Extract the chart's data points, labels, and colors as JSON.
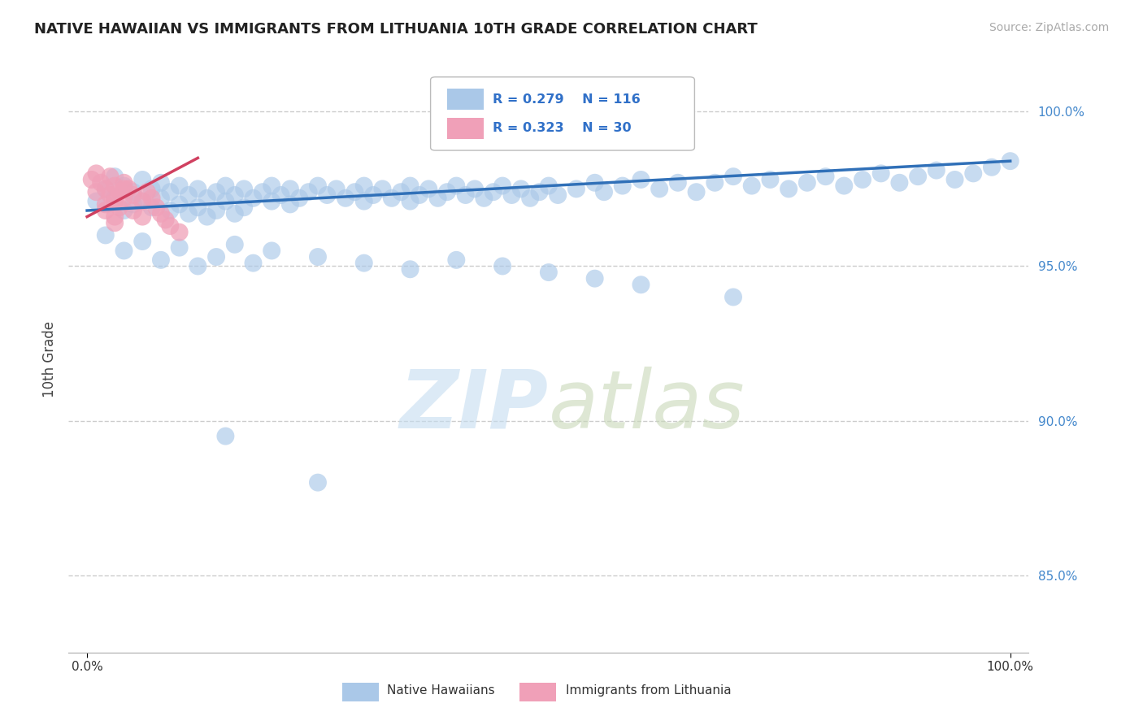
{
  "title": "NATIVE HAWAIIAN VS IMMIGRANTS FROM LITHUANIA 10TH GRADE CORRELATION CHART",
  "source": "Source: ZipAtlas.com",
  "ylabel": "10th Grade",
  "ytick_values": [
    0.85,
    0.9,
    0.95,
    1.0
  ],
  "xlim": [
    -0.02,
    1.02
  ],
  "ylim": [
    0.825,
    1.015
  ],
  "legend_r1": "R = 0.279",
  "legend_n1": "N = 116",
  "legend_r2": "R = 0.323",
  "legend_n2": "N = 30",
  "blue_color": "#aac8e8",
  "pink_color": "#f0a0b8",
  "blue_line_color": "#3070b8",
  "pink_line_color": "#d04060",
  "legend_text_color": "#3070c8",
  "background_color": "#ffffff",
  "blue_scatter_x": [
    0.01,
    0.02,
    0.03,
    0.03,
    0.04,
    0.04,
    0.05,
    0.05,
    0.06,
    0.06,
    0.07,
    0.07,
    0.08,
    0.08,
    0.09,
    0.09,
    0.1,
    0.1,
    0.11,
    0.11,
    0.12,
    0.12,
    0.13,
    0.13,
    0.14,
    0.14,
    0.15,
    0.15,
    0.16,
    0.16,
    0.17,
    0.17,
    0.18,
    0.19,
    0.2,
    0.2,
    0.21,
    0.22,
    0.22,
    0.23,
    0.24,
    0.25,
    0.26,
    0.27,
    0.28,
    0.29,
    0.3,
    0.3,
    0.31,
    0.32,
    0.33,
    0.34,
    0.35,
    0.35,
    0.36,
    0.37,
    0.38,
    0.39,
    0.4,
    0.41,
    0.42,
    0.43,
    0.44,
    0.45,
    0.46,
    0.47,
    0.48,
    0.49,
    0.5,
    0.51,
    0.53,
    0.55,
    0.56,
    0.58,
    0.6,
    0.62,
    0.64,
    0.66,
    0.68,
    0.7,
    0.72,
    0.74,
    0.76,
    0.78,
    0.8,
    0.82,
    0.84,
    0.86,
    0.88,
    0.9,
    0.92,
    0.94,
    0.96,
    0.98,
    1.0,
    0.02,
    0.04,
    0.06,
    0.08,
    0.1,
    0.12,
    0.14,
    0.16,
    0.18,
    0.2,
    0.25,
    0.3,
    0.35,
    0.4,
    0.45,
    0.5,
    0.55,
    0.6,
    0.7,
    0.15,
    0.25
  ],
  "blue_scatter_y": [
    0.971,
    0.975,
    0.979,
    0.972,
    0.968,
    0.976,
    0.974,
    0.97,
    0.978,
    0.971,
    0.975,
    0.969,
    0.977,
    0.972,
    0.974,
    0.968,
    0.976,
    0.97,
    0.973,
    0.967,
    0.975,
    0.969,
    0.972,
    0.966,
    0.974,
    0.968,
    0.976,
    0.971,
    0.973,
    0.967,
    0.975,
    0.969,
    0.972,
    0.974,
    0.976,
    0.971,
    0.973,
    0.975,
    0.97,
    0.972,
    0.974,
    0.976,
    0.973,
    0.975,
    0.972,
    0.974,
    0.976,
    0.971,
    0.973,
    0.975,
    0.972,
    0.974,
    0.976,
    0.971,
    0.973,
    0.975,
    0.972,
    0.974,
    0.976,
    0.973,
    0.975,
    0.972,
    0.974,
    0.976,
    0.973,
    0.975,
    0.972,
    0.974,
    0.976,
    0.973,
    0.975,
    0.977,
    0.974,
    0.976,
    0.978,
    0.975,
    0.977,
    0.974,
    0.977,
    0.979,
    0.976,
    0.978,
    0.975,
    0.977,
    0.979,
    0.976,
    0.978,
    0.98,
    0.977,
    0.979,
    0.981,
    0.978,
    0.98,
    0.982,
    0.984,
    0.96,
    0.955,
    0.958,
    0.952,
    0.956,
    0.95,
    0.953,
    0.957,
    0.951,
    0.955,
    0.953,
    0.951,
    0.949,
    0.952,
    0.95,
    0.948,
    0.946,
    0.944,
    0.94,
    0.895,
    0.88
  ],
  "pink_scatter_x": [
    0.005,
    0.01,
    0.01,
    0.015,
    0.02,
    0.02,
    0.025,
    0.025,
    0.03,
    0.03,
    0.03,
    0.035,
    0.035,
    0.04,
    0.04,
    0.045,
    0.05,
    0.05,
    0.06,
    0.06,
    0.065,
    0.07,
    0.075,
    0.08,
    0.085,
    0.09,
    0.1,
    0.02,
    0.03,
    0.04
  ],
  "pink_scatter_y": [
    0.978,
    0.98,
    0.974,
    0.977,
    0.975,
    0.97,
    0.979,
    0.973,
    0.976,
    0.971,
    0.966,
    0.974,
    0.969,
    0.977,
    0.972,
    0.975,
    0.973,
    0.968,
    0.971,
    0.966,
    0.974,
    0.972,
    0.969,
    0.967,
    0.965,
    0.963,
    0.961,
    0.968,
    0.964,
    0.975
  ],
  "blue_trend_x0": 0.0,
  "blue_trend_x1": 1.0,
  "blue_trend_y0": 0.968,
  "blue_trend_y1": 0.984,
  "pink_trend_x0": 0.0,
  "pink_trend_x1": 0.12,
  "pink_trend_y0": 0.966,
  "pink_trend_y1": 0.985
}
